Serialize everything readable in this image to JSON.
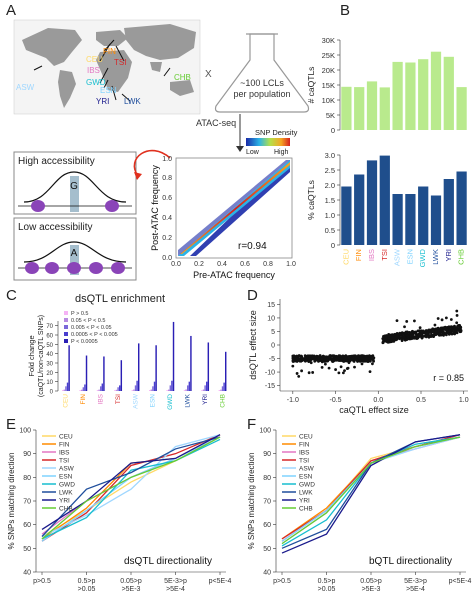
{
  "panels": {
    "a": {
      "letter": "A",
      "map_labels": [
        {
          "id": "fin",
          "text": "FIN",
          "color": "#ff8a00"
        },
        {
          "id": "ceu",
          "text": "CEU",
          "color": "#ffd966"
        },
        {
          "id": "tsi",
          "text": "TSI",
          "color": "#d62728"
        },
        {
          "id": "ibs",
          "text": "IBS",
          "color": "#e377c2"
        },
        {
          "id": "gwd",
          "text": "GWD",
          "color": "#17becf"
        },
        {
          "id": "asw",
          "text": "ASW",
          "color": "#9fd7ff"
        },
        {
          "id": "esn",
          "text": "ESN",
          "color": "#7fd3ff"
        },
        {
          "id": "yri",
          "text": "YRI",
          "color": "#1a1a8c"
        },
        {
          "id": "lwk",
          "text": "LWK",
          "color": "#1f4e9c"
        },
        {
          "id": "chb",
          "text": "CHB",
          "color": "#66cc33"
        }
      ],
      "times": "X",
      "flask_text": "~100 LCLs per population",
      "atac_label": "ATAC-seq",
      "high_access": "High accessibility",
      "low_access": "Low accessibility",
      "allele_high": "G",
      "allele_low": "A",
      "density_title": "SNP Density",
      "density_low": "Low",
      "density_high": "High",
      "r_value": "r=0.94",
      "scatter": {
        "xlabel": "Pre-ATAC frequency",
        "ylabel": "Post-ATAC frequency",
        "ticks": [
          "0.0",
          "0.2",
          "0.4",
          "0.6",
          "0.8",
          "1.0"
        ]
      }
    },
    "b": {
      "letter": "B"
    },
    "c": {
      "letter": "C"
    },
    "d": {
      "letter": "D"
    },
    "e": {
      "letter": "E"
    },
    "f": {
      "letter": "F"
    }
  },
  "chart_data": [
    {
      "id": "b_top",
      "type": "bar",
      "ylabel": "# caQTLs",
      "yticks": [
        "0",
        "5K",
        "10K",
        "15K",
        "20K",
        "25K",
        "30K"
      ],
      "ylim": [
        0,
        30000
      ],
      "color": "#b9ea8d",
      "categories": [
        "CEU",
        "FIN",
        "IBS",
        "TSI",
        "ASW",
        "ESN",
        "GWD",
        "LWK",
        "YRI",
        "CHB"
      ],
      "values": [
        14400,
        14300,
        16200,
        14200,
        22700,
        22500,
        23600,
        26100,
        24400,
        14300
      ]
    },
    {
      "id": "b_bottom",
      "type": "bar",
      "ylabel": "% caQTLs",
      "yticks": [
        "0",
        "0.5",
        "1.0",
        "1.5",
        "2.0",
        "2.5",
        "3.0"
      ],
      "ylim": [
        0,
        3.0
      ],
      "color": "#1f4e8c",
      "categories": [
        "CEU",
        "FIN",
        "IBS",
        "TSI",
        "ASW",
        "ESN",
        "GWD",
        "LWK",
        "YRI",
        "CHB"
      ],
      "category_colors": [
        "#ffd966",
        "#ff8a00",
        "#e377c2",
        "#d62728",
        "#9fd7ff",
        "#7fd3ff",
        "#17becf",
        "#1f4e9c",
        "#1a1a8c",
        "#66cc33"
      ],
      "values": [
        1.95,
        2.35,
        2.82,
        2.98,
        1.7,
        1.7,
        1.95,
        1.65,
        2.2,
        2.45
      ]
    },
    {
      "id": "c",
      "type": "bar",
      "title": "dsQTL enrichment",
      "ylabel": "Fold change (caQTL/non-caQTL SNPs)",
      "yticks": [
        "0",
        "10",
        "20",
        "30",
        "40",
        "50",
        "60",
        "70"
      ],
      "ylim": [
        0,
        75
      ],
      "categories": [
        "CEU",
        "FIN",
        "IBS",
        "TSI",
        "ASW",
        "ESN",
        "GWD",
        "LWK",
        "YRI",
        "CHB"
      ],
      "category_colors": [
        "#ffd966",
        "#ff8a00",
        "#e377c2",
        "#d62728",
        "#9fd7ff",
        "#7fd3ff",
        "#17becf",
        "#1f4e9c",
        "#1a1a8c",
        "#66cc33"
      ],
      "series": [
        {
          "name": "P > 0.5",
          "color": "#f5b3f5",
          "values": [
            1,
            1,
            1,
            1,
            1,
            1,
            1,
            1,
            1,
            1
          ]
        },
        {
          "name": "0.05 < P < 0.5",
          "color": "#b78be0",
          "values": [
            1.5,
            1.4,
            1.5,
            1.3,
            1.6,
            1.6,
            1.5,
            1.7,
            1.6,
            1.5
          ]
        },
        {
          "name": "0.005 < P < 0.05",
          "color": "#7b68d9",
          "values": [
            5,
            4,
            5,
            4,
            6,
            5,
            6,
            6,
            6,
            5
          ]
        },
        {
          "name": "0.0005 < P < 0.005",
          "color": "#4a3fcf",
          "values": [
            9,
            7,
            8,
            6,
            11,
            10,
            11,
            10,
            10,
            9
          ]
        },
        {
          "name": "P < 0.0005",
          "color": "#2a1fb5",
          "values": [
            49,
            38,
            37,
            33,
            51,
            49,
            74,
            59,
            52,
            42
          ]
        }
      ]
    },
    {
      "id": "d",
      "type": "scatter",
      "xlabel": "caQTL effect size",
      "ylabel": "dsQTL effect size",
      "xticks": [
        "-1.0",
        "-0.5",
        "0.0",
        "0.5",
        "1.0"
      ],
      "yticks": [
        "-15",
        "-10",
        "-5",
        "0",
        "5",
        "10",
        "15"
      ],
      "xlim": [
        -1.15,
        1.05
      ],
      "ylim": [
        -17,
        17
      ],
      "annotation": "r = 0.85"
    },
    {
      "id": "e",
      "type": "line",
      "title": "dsQTL directionality",
      "ylabel": "% SNPs matching direction",
      "yticks": [
        "40",
        "50",
        "60",
        "70",
        "80",
        "90",
        "100"
      ],
      "ylim": [
        40,
        100
      ],
      "categories": [
        "p>0.5",
        "0.5>p >0.05",
        "0.05>p >5E-3",
        "5E-3>p >5E-4",
        "p<5E-4"
      ],
      "series": [
        {
          "name": "CEU",
          "color": "#ffd966",
          "values": [
            55,
            66,
            78,
            87,
            97
          ]
        },
        {
          "name": "FIN",
          "color": "#ff8a00",
          "values": [
            54,
            67,
            86,
            88,
            98
          ]
        },
        {
          "name": "IBS",
          "color": "#e377c2",
          "values": [
            56,
            70,
            80,
            88,
            98
          ]
        },
        {
          "name": "TSI",
          "color": "#d62728",
          "values": [
            53,
            65,
            85,
            90,
            98
          ]
        },
        {
          "name": "ASW",
          "color": "#9fd7ff",
          "values": [
            55,
            64,
            75,
            93,
            98
          ]
        },
        {
          "name": "ESN",
          "color": "#7fd3ff",
          "values": [
            53,
            66,
            80,
            88,
            97
          ]
        },
        {
          "name": "GWD",
          "color": "#17becf",
          "values": [
            54,
            63,
            83,
            87,
            96
          ]
        },
        {
          "name": "LWK",
          "color": "#1f4e9c",
          "values": [
            55,
            75,
            82,
            92,
            97
          ]
        },
        {
          "name": "YRI",
          "color": "#1a1a8c",
          "values": [
            58,
            70,
            86,
            88,
            98
          ]
        },
        {
          "name": "CHB",
          "color": "#66cc33",
          "values": [
            54,
            70,
            80,
            87,
            97
          ]
        }
      ]
    },
    {
      "id": "f",
      "type": "line",
      "title": "bQTL directionality",
      "ylabel": "% SNPs matching direction",
      "yticks": [
        "40",
        "50",
        "60",
        "70",
        "80",
        "90",
        "100"
      ],
      "ylim": [
        40,
        100
      ],
      "categories": [
        "p>0.5",
        "0.5>p >0.05",
        "0.05>p >5E-3",
        "5E-3>p >5E-4",
        "p<5E-4"
      ],
      "series": [
        {
          "name": "CEU",
          "color": "#ffd966",
          "values": [
            53,
            66,
            88,
            93,
            97
          ]
        },
        {
          "name": "FIN",
          "color": "#ff8a00",
          "values": [
            54,
            67,
            87,
            93,
            97
          ]
        },
        {
          "name": "IBS",
          "color": "#e377c2",
          "values": [
            53,
            66,
            87,
            92,
            97
          ]
        },
        {
          "name": "TSI",
          "color": "#d62728",
          "values": [
            54,
            66,
            87,
            93,
            98
          ]
        },
        {
          "name": "ASW",
          "color": "#9fd7ff",
          "values": [
            52,
            65,
            86,
            92,
            97
          ]
        },
        {
          "name": "ESN",
          "color": "#7fd3ff",
          "values": [
            53,
            66,
            86,
            93,
            97
          ]
        },
        {
          "name": "GWD",
          "color": "#17becf",
          "values": [
            51,
            62,
            86,
            94,
            97
          ]
        },
        {
          "name": "LWK",
          "color": "#1f4e9c",
          "values": [
            50,
            58,
            86,
            95,
            98
          ]
        },
        {
          "name": "YRI",
          "color": "#1a1a8c",
          "values": [
            48,
            56,
            85,
            95,
            98
          ]
        },
        {
          "name": "CHB",
          "color": "#66cc33",
          "values": [
            52,
            65,
            86,
            93,
            97
          ]
        }
      ]
    }
  ]
}
